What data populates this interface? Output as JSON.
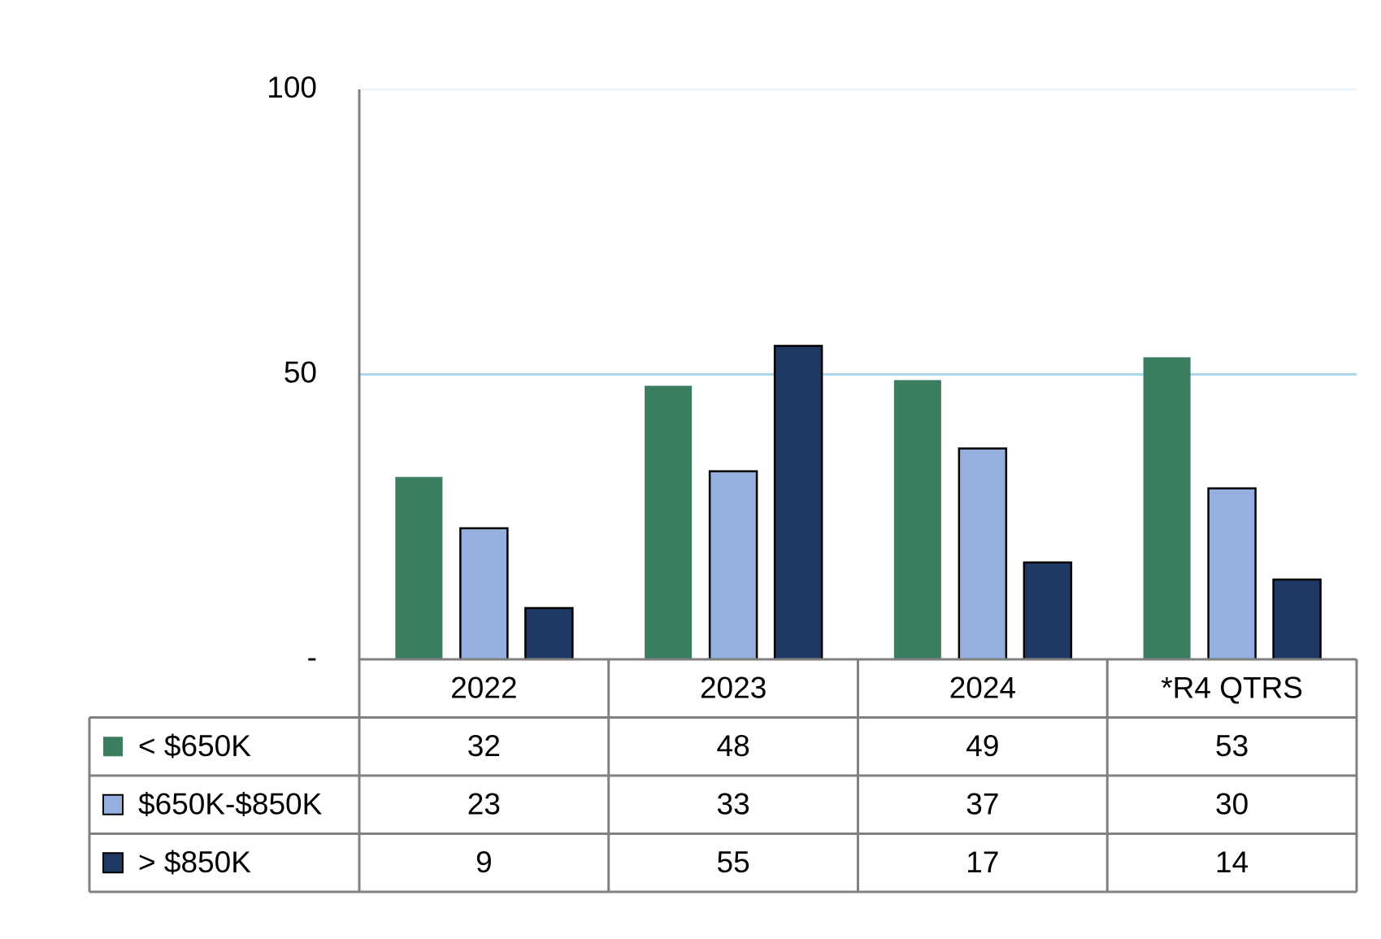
{
  "chart_data": {
    "type": "bar",
    "categories": [
      "2022",
      "2023",
      "2024",
      "*R4 QTRS"
    ],
    "series": [
      {
        "name": "< $650K",
        "color": "#3a7d5f",
        "values": [
          32,
          48,
          49,
          53
        ]
      },
      {
        "name": "$650K-$850K",
        "color": "#95b0de",
        "edgecolor": "#000000",
        "values": [
          23,
          33,
          37,
          30
        ]
      },
      {
        "name": "> $850K",
        "color": "#203864",
        "edgecolor": "#000000",
        "values": [
          9,
          55,
          17,
          14
        ]
      }
    ],
    "ylim": [
      0,
      100
    ],
    "yticks": [
      {
        "value": 0,
        "label": "-"
      },
      50,
      100
    ],
    "grid": true,
    "data_table": true
  }
}
